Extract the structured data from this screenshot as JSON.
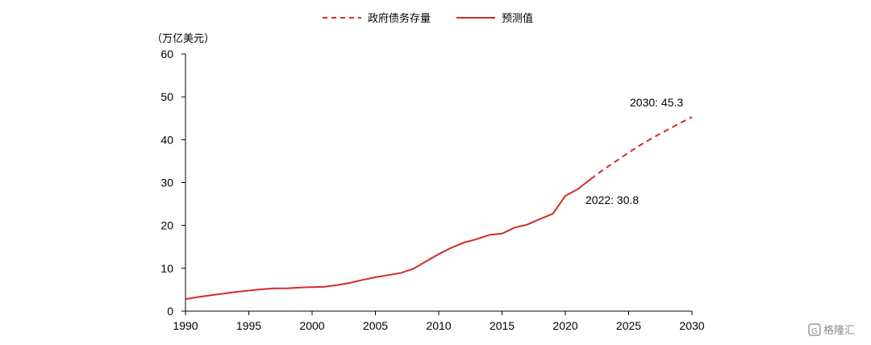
{
  "chart_data": {
    "type": "line",
    "unit_label": "（万亿美元）",
    "ylim": [
      0,
      60
    ],
    "yticks": [
      0,
      10,
      20,
      30,
      40,
      50,
      60
    ],
    "xlim": [
      1990,
      2030
    ],
    "xticks": [
      1990,
      1995,
      2000,
      2005,
      2010,
      2015,
      2020,
      2025,
      2030
    ],
    "legend_position": "top-center",
    "grid": false,
    "colors": {
      "line": "#d42b2b",
      "axis": "#000000"
    },
    "series": [
      {
        "name": "政府债务存量",
        "style": "dashed",
        "x": [
          2022,
          2023,
          2024,
          2025,
          2026,
          2027,
          2028,
          2029,
          2030
        ],
        "y": [
          30.8,
          33.0,
          35.0,
          37.0,
          38.9,
          40.6,
          42.2,
          43.8,
          45.3
        ]
      },
      {
        "name": "预测值",
        "style": "solid",
        "x": [
          1990,
          1991,
          1992,
          1993,
          1994,
          1995,
          1996,
          1997,
          1998,
          1999,
          2000,
          2001,
          2002,
          2003,
          2004,
          2005,
          2006,
          2007,
          2008,
          2009,
          2010,
          2011,
          2012,
          2013,
          2014,
          2015,
          2016,
          2017,
          2018,
          2019,
          2020,
          2021,
          2022
        ],
        "y": [
          2.8,
          3.3,
          3.7,
          4.1,
          4.5,
          4.8,
          5.1,
          5.3,
          5.3,
          5.5,
          5.6,
          5.7,
          6.1,
          6.6,
          7.3,
          7.9,
          8.4,
          8.9,
          9.9,
          11.6,
          13.3,
          14.8,
          16.0,
          16.8,
          17.8,
          18.1,
          19.5,
          20.2,
          21.5,
          22.7,
          26.9,
          28.5,
          30.8
        ]
      }
    ],
    "annotations": [
      {
        "text": "2030: 45.3"
      },
      {
        "text": "2022: 30.8"
      }
    ]
  },
  "watermark": {
    "logo_text": "格隆汇"
  }
}
